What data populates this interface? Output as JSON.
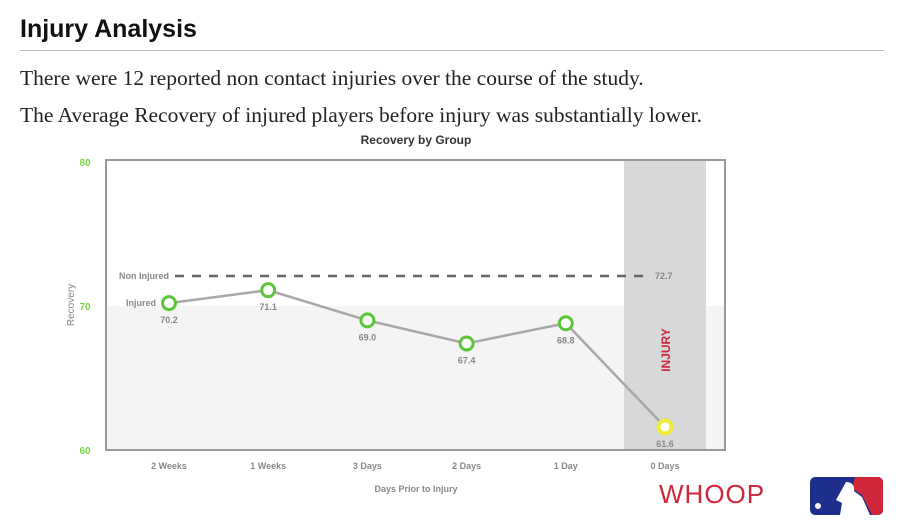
{
  "header": {
    "title": "Injury Analysis"
  },
  "body": {
    "line1": "There were 12 reported non contact injuries over the course of the study.",
    "line2": "The Average Recovery of injured players before injury was substantially lower."
  },
  "chart_data": {
    "type": "line",
    "title": "Recovery by Group",
    "xlabel": "Days Prior to Injury",
    "ylabel": "Recovery",
    "ylim": [
      60,
      80
    ],
    "yticks": [
      "60",
      "70",
      "80"
    ],
    "categories": [
      "2 Weeks",
      "1 Weeks",
      "3 Days",
      "2 Days",
      "1 Day",
      "0 Days"
    ],
    "series": [
      {
        "name": "Injured",
        "values": [
          70.2,
          71.1,
          69.0,
          67.4,
          68.8,
          61.6
        ],
        "labels": [
          "70.2",
          "71.1",
          "69.0",
          "67.4",
          "68.8",
          "61.6"
        ]
      }
    ],
    "reference": {
      "name": "Non Injured",
      "value": 72.7,
      "label": "72.7"
    },
    "annotation": "INJURY",
    "colors": {
      "marker": "#5cc63a",
      "injury_marker": "#f2ea3a",
      "line": "#a8a8a8",
      "band": "#d7d8da",
      "injury_text": "#d0263a",
      "ytick": "#7dd34b"
    }
  },
  "logos": {
    "whoop": "WHOOP",
    "mlb": "MLB"
  }
}
